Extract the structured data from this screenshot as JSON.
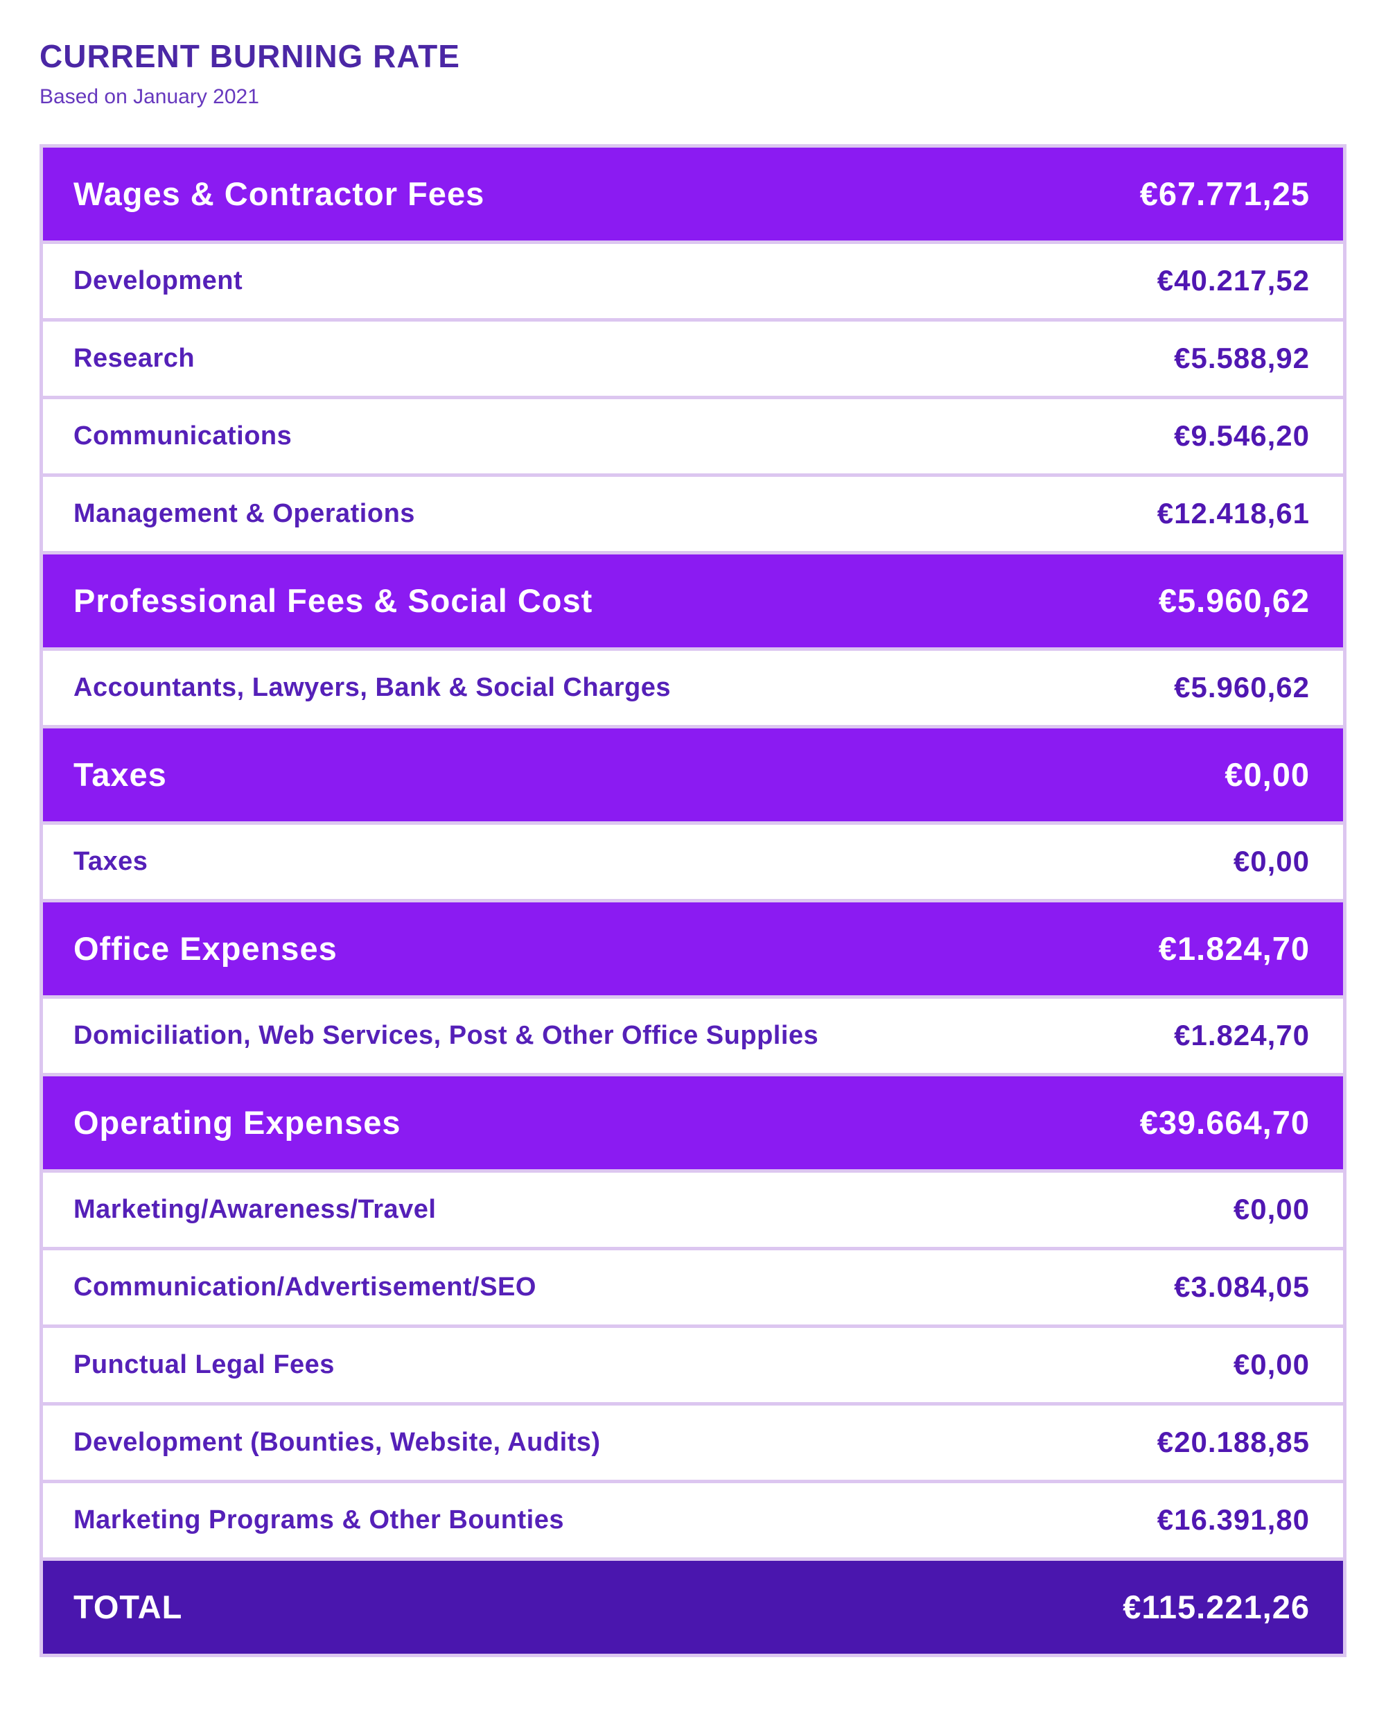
{
  "header": {
    "title": "CURRENT BURNING RATE",
    "subtitle": "Based on January 2021"
  },
  "colors": {
    "section_bg": "#8B1BF2",
    "total_bg": "#4A16AE",
    "frame": "#DCC6F0",
    "title_text": "#4B27A5",
    "subtitle_text": "#6638BE",
    "item_label_text": "#5520B8",
    "item_value_text": "#5017B2",
    "header_text": "#FFFFFF"
  },
  "table": {
    "rows": [
      {
        "type": "section",
        "label": "Wages & Contractor Fees",
        "value": "€67.771,25"
      },
      {
        "type": "item",
        "label": "Development",
        "value": "€40.217,52"
      },
      {
        "type": "item",
        "label": "Research",
        "value": "€5.588,92"
      },
      {
        "type": "item",
        "label": "Communications",
        "value": "€9.546,20"
      },
      {
        "type": "item",
        "label": "Management & Operations",
        "value": "€12.418,61"
      },
      {
        "type": "section",
        "label": "Professional Fees & Social Cost",
        "value": "€5.960,62"
      },
      {
        "type": "item",
        "label": "Accountants, Lawyers, Bank & Social Charges",
        "value": "€5.960,62"
      },
      {
        "type": "section",
        "label": "Taxes",
        "value": "€0,00"
      },
      {
        "type": "item",
        "label": "Taxes",
        "value": "€0,00"
      },
      {
        "type": "section",
        "label": "Office Expenses",
        "value": "€1.824,70"
      },
      {
        "type": "item",
        "label": "Domiciliation, Web Services, Post & Other Office Supplies",
        "value": "€1.824,70"
      },
      {
        "type": "section",
        "label": "Operating Expenses",
        "value": "€39.664,70"
      },
      {
        "type": "item",
        "label": "Marketing/Awareness/Travel",
        "value": "€0,00"
      },
      {
        "type": "item",
        "label": "Communication/Advertisement/SEO",
        "value": "€3.084,05"
      },
      {
        "type": "item",
        "label": "Punctual Legal Fees",
        "value": "€0,00"
      },
      {
        "type": "item",
        "label": "Development (Bounties, Website, Audits)",
        "value": "€20.188,85"
      },
      {
        "type": "item",
        "label": "Marketing Programs & Other Bounties",
        "value": "€16.391,80"
      },
      {
        "type": "total",
        "label": "TOTAL",
        "value": "€115.221,26"
      }
    ]
  },
  "chart_data": {
    "type": "table",
    "title": "CURRENT BURNING RATE",
    "subtitle": "Based on January 2021",
    "currency": "EUR",
    "columns": [
      "Category",
      "Amount"
    ],
    "sections": [
      {
        "name": "Wages & Contractor Fees",
        "total": 67771.25,
        "items": [
          {
            "label": "Development",
            "value": 40217.52
          },
          {
            "label": "Research",
            "value": 5588.92
          },
          {
            "label": "Communications",
            "value": 9546.2
          },
          {
            "label": "Management & Operations",
            "value": 12418.61
          }
        ]
      },
      {
        "name": "Professional Fees & Social Cost",
        "total": 5960.62,
        "items": [
          {
            "label": "Accountants, Lawyers, Bank & Social Charges",
            "value": 5960.62
          }
        ]
      },
      {
        "name": "Taxes",
        "total": 0.0,
        "items": [
          {
            "label": "Taxes",
            "value": 0.0
          }
        ]
      },
      {
        "name": "Office Expenses",
        "total": 1824.7,
        "items": [
          {
            "label": "Domiciliation, Web Services, Post & Other Office Supplies",
            "value": 1824.7
          }
        ]
      },
      {
        "name": "Operating Expenses",
        "total": 39664.7,
        "items": [
          {
            "label": "Marketing/Awareness/Travel",
            "value": 0.0
          },
          {
            "label": "Communication/Advertisement/SEO",
            "value": 3084.05
          },
          {
            "label": "Punctual Legal Fees",
            "value": 0.0
          },
          {
            "label": "Development (Bounties, Website, Audits)",
            "value": 20188.85
          },
          {
            "label": "Marketing Programs & Other Bounties",
            "value": 16391.8
          }
        ]
      }
    ],
    "grand_total": 115221.26
  }
}
